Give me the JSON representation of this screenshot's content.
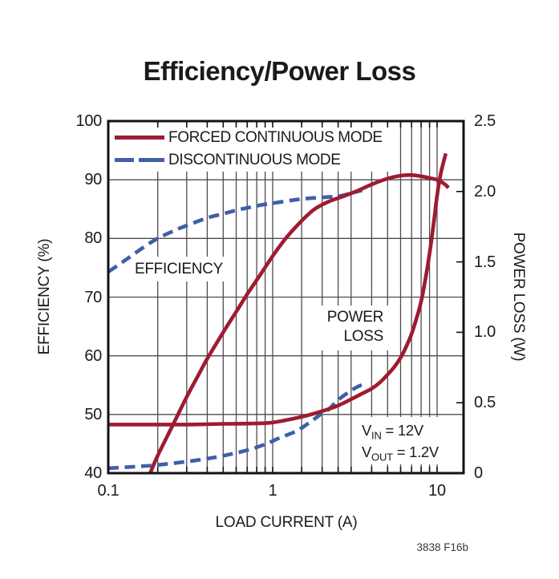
{
  "title": "Efficiency/Power Loss",
  "footnote": "3838 F16b",
  "colors": {
    "fcm_red": "#9e1b32",
    "dcm_blue": "#3f5fa8",
    "grid": "#4d4d4d",
    "frame": "#121212",
    "text": "#1a1a1a",
    "background": "#ffffff"
  },
  "legend": {
    "items": [
      {
        "label": "FORCED CONTINUOUS MODE",
        "style": "solid",
        "color": "#9e1b32"
      },
      {
        "label": "DISCONTINUOUS MODE",
        "style": "dashed",
        "color": "#3f5fa8"
      }
    ]
  },
  "annotations": {
    "efficiency_label": "EFFICIENCY",
    "power_loss_label_line1": "POWER",
    "power_loss_label_line2": "LOSS",
    "conditions": [
      {
        "main": "V",
        "sub": "IN",
        "rest": " = 12V"
      },
      {
        "main": "V",
        "sub": "OUT",
        "rest": " = 1.2V"
      }
    ]
  },
  "axes": {
    "x": {
      "label": "LOAD CURRENT (A)",
      "scale": "log",
      "min": 0.1,
      "max": 14.3,
      "major_ticks": [
        {
          "value": 0.1,
          "label": "0.1"
        },
        {
          "value": 1,
          "label": "1"
        },
        {
          "value": 10,
          "label": "10"
        }
      ],
      "gridline_values": [
        0.2,
        0.3,
        0.4,
        0.5,
        0.6,
        0.7,
        0.8,
        0.9,
        1,
        1.5,
        2,
        2.5,
        3,
        4,
        5,
        6,
        7,
        8,
        9,
        10
      ]
    },
    "y_left": {
      "label": "EFFICIENCY (%)",
      "min": 40,
      "max": 100,
      "ticks": [
        {
          "value": 100,
          "label": "100"
        },
        {
          "value": 90,
          "label": "90"
        },
        {
          "value": 80,
          "label": "80"
        },
        {
          "value": 70,
          "label": "70"
        },
        {
          "value": 60,
          "label": "60"
        },
        {
          "value": 50,
          "label": "50"
        },
        {
          "value": 40,
          "label": "40"
        }
      ],
      "gridline_values": [
        50,
        60,
        70,
        80,
        90
      ]
    },
    "y_right": {
      "label": "POWER LOSS (W)",
      "min": 0,
      "max": 2.5,
      "ticks": [
        {
          "value": 2.5,
          "label": "2.5"
        },
        {
          "value": 2.0,
          "label": "2.0"
        },
        {
          "value": 1.5,
          "label": "1.5"
        },
        {
          "value": 1.0,
          "label": "1.0"
        },
        {
          "value": 0.5,
          "label": "0.5"
        },
        {
          "value": 0,
          "label": "0"
        }
      ],
      "minor_tick_values": [
        0.5,
        1.0,
        1.5,
        2.0
      ]
    }
  },
  "chart_data": {
    "type": "line",
    "x_unit": "A",
    "series": [
      {
        "name": "EFFICIENCY — DISCONTINUOUS MODE",
        "axis": "y_left",
        "style": "dashed",
        "color": "#3f5fa8",
        "points": [
          [
            0.1,
            74.3
          ],
          [
            0.13,
            76.5
          ],
          [
            0.17,
            78.8
          ],
          [
            0.2,
            80
          ],
          [
            0.25,
            81.3
          ],
          [
            0.3,
            82.2
          ],
          [
            0.4,
            83.5
          ],
          [
            0.5,
            84.2
          ],
          [
            0.6,
            84.8
          ],
          [
            0.7,
            85.2
          ],
          [
            0.85,
            85.7
          ],
          [
            1,
            86
          ],
          [
            1.3,
            86.5
          ],
          [
            1.6,
            86.8
          ],
          [
            2,
            87
          ],
          [
            2.5,
            87.2
          ],
          [
            3,
            87.7
          ],
          [
            3.5,
            88.2
          ]
        ]
      },
      {
        "name": "POWER LOSS — DISCONTINUOUS MODE",
        "axis": "y_right",
        "style": "dashed",
        "color": "#3f5fa8",
        "points": [
          [
            0.1,
            0.035
          ],
          [
            0.15,
            0.047
          ],
          [
            0.2,
            0.058
          ],
          [
            0.3,
            0.082
          ],
          [
            0.4,
            0.103
          ],
          [
            0.5,
            0.123
          ],
          [
            0.7,
            0.163
          ],
          [
            0.9,
            0.205
          ],
          [
            1.1,
            0.25
          ],
          [
            1.4,
            0.3
          ],
          [
            1.7,
            0.365
          ],
          [
            2,
            0.425
          ],
          [
            2.2,
            0.455
          ],
          [
            2.5,
            0.52
          ],
          [
            2.9,
            0.575
          ],
          [
            3.3,
            0.615
          ],
          [
            3.6,
            0.63
          ]
        ]
      },
      {
        "name": "EFFICIENCY — FORCED CONTINUOUS MODE",
        "axis": "y_left",
        "style": "solid",
        "color": "#9e1b32",
        "points": [
          [
            0.18,
            40
          ],
          [
            0.2,
            43
          ],
          [
            0.25,
            48.5
          ],
          [
            0.3,
            53
          ],
          [
            0.35,
            56.5
          ],
          [
            0.4,
            59.5
          ],
          [
            0.5,
            64
          ],
          [
            0.6,
            67.5
          ],
          [
            0.7,
            70.5
          ],
          [
            0.85,
            74
          ],
          [
            1,
            77
          ],
          [
            1.2,
            80
          ],
          [
            1.5,
            83
          ],
          [
            1.8,
            85
          ],
          [
            2.2,
            86.3
          ],
          [
            2.7,
            87.2
          ],
          [
            3.2,
            88
          ],
          [
            4,
            89.2
          ],
          [
            5,
            90.2
          ],
          [
            6,
            90.7
          ],
          [
            7,
            90.8
          ],
          [
            8,
            90.6
          ],
          [
            9,
            90.3
          ],
          [
            10,
            90
          ],
          [
            10.8,
            89.5
          ],
          [
            11.4,
            89
          ],
          [
            11.7,
            88.6
          ]
        ]
      },
      {
        "name": "POWER LOSS — FORCED CONTINUOUS MODE",
        "axis": "y_right",
        "style": "solid",
        "color": "#9e1b32",
        "points": [
          [
            0.1,
            0.345
          ],
          [
            0.3,
            0.345
          ],
          [
            0.5,
            0.35
          ],
          [
            0.7,
            0.352
          ],
          [
            1,
            0.36
          ],
          [
            1.5,
            0.4
          ],
          [
            2,
            0.44
          ],
          [
            2.5,
            0.48
          ],
          [
            3,
            0.525
          ],
          [
            3.5,
            0.565
          ],
          [
            4,
            0.6
          ],
          [
            4.5,
            0.645
          ],
          [
            5,
            0.7
          ],
          [
            5.5,
            0.755
          ],
          [
            6,
            0.82
          ],
          [
            6.5,
            0.9
          ],
          [
            7,
            0.99
          ],
          [
            7.5,
            1.1
          ],
          [
            8,
            1.22
          ],
          [
            8.5,
            1.38
          ],
          [
            9,
            1.56
          ],
          [
            9.5,
            1.76
          ],
          [
            10,
            1.97
          ],
          [
            10.5,
            2.12
          ],
          [
            11,
            2.22
          ],
          [
            11.3,
            2.27
          ]
        ]
      }
    ]
  }
}
